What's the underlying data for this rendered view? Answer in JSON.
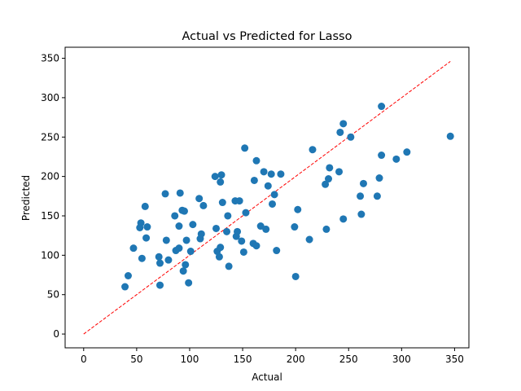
{
  "chart_data": {
    "type": "scatter",
    "title": "Actual vs Predicted for Lasso",
    "xlabel": "Actual",
    "ylabel": "Predicted",
    "xlim": [
      -17.5,
      363.5
    ],
    "ylim": [
      -17.5,
      364
    ],
    "xticks": [
      0,
      50,
      100,
      150,
      200,
      250,
      300,
      350
    ],
    "yticks": [
      0,
      50,
      100,
      150,
      200,
      250,
      300,
      350
    ],
    "grid": false,
    "point_color": "#1f77b4",
    "reference_line": {
      "from": [
        0,
        0
      ],
      "to": [
        346,
        346
      ],
      "color": "#ff0000",
      "style": "dashed"
    },
    "points": [
      [
        39,
        60
      ],
      [
        42,
        74
      ],
      [
        47,
        109
      ],
      [
        53,
        135
      ],
      [
        54,
        141
      ],
      [
        55,
        96
      ],
      [
        58,
        162
      ],
      [
        59,
        122
      ],
      [
        60,
        136
      ],
      [
        71,
        98
      ],
      [
        72,
        90
      ],
      [
        72,
        62
      ],
      [
        77,
        178
      ],
      [
        78,
        119
      ],
      [
        80,
        94
      ],
      [
        86,
        150
      ],
      [
        87,
        106
      ],
      [
        90,
        137
      ],
      [
        90,
        109
      ],
      [
        91,
        179
      ],
      [
        93,
        157
      ],
      [
        94,
        80
      ],
      [
        95,
        156
      ],
      [
        96,
        88
      ],
      [
        97,
        119
      ],
      [
        99,
        65
      ],
      [
        101,
        105
      ],
      [
        103,
        139
      ],
      [
        109,
        172
      ],
      [
        110,
        121
      ],
      [
        111,
        127
      ],
      [
        113,
        163
      ],
      [
        124,
        200
      ],
      [
        125,
        134
      ],
      [
        126,
        105
      ],
      [
        128,
        98
      ],
      [
        129,
        110
      ],
      [
        129,
        193
      ],
      [
        130,
        202
      ],
      [
        131,
        167
      ],
      [
        135,
        130
      ],
      [
        136,
        150
      ],
      [
        137,
        86
      ],
      [
        143,
        169
      ],
      [
        144,
        124
      ],
      [
        145,
        130
      ],
      [
        147,
        169
      ],
      [
        149,
        118
      ],
      [
        151,
        104
      ],
      [
        152,
        236
      ],
      [
        153,
        154
      ],
      [
        160,
        115
      ],
      [
        161,
        195
      ],
      [
        163,
        112
      ],
      [
        163,
        220
      ],
      [
        167,
        137
      ],
      [
        170,
        206
      ],
      [
        172,
        133
      ],
      [
        174,
        188
      ],
      [
        177,
        203
      ],
      [
        178,
        165
      ],
      [
        180,
        177
      ],
      [
        182,
        106
      ],
      [
        186,
        203
      ],
      [
        199,
        136
      ],
      [
        200,
        73
      ],
      [
        202,
        158
      ],
      [
        213,
        120
      ],
      [
        216,
        234
      ],
      [
        228,
        190
      ],
      [
        229,
        133
      ],
      [
        231,
        197
      ],
      [
        232,
        211
      ],
      [
        241,
        206
      ],
      [
        242,
        256
      ],
      [
        245,
        267
      ],
      [
        245,
        146
      ],
      [
        252,
        250
      ],
      [
        261,
        175
      ],
      [
        262,
        152
      ],
      [
        264,
        191
      ],
      [
        277,
        175
      ],
      [
        279,
        198
      ],
      [
        281,
        227
      ],
      [
        281,
        289
      ],
      [
        295,
        222
      ],
      [
        305,
        231
      ],
      [
        346,
        251
      ]
    ]
  }
}
